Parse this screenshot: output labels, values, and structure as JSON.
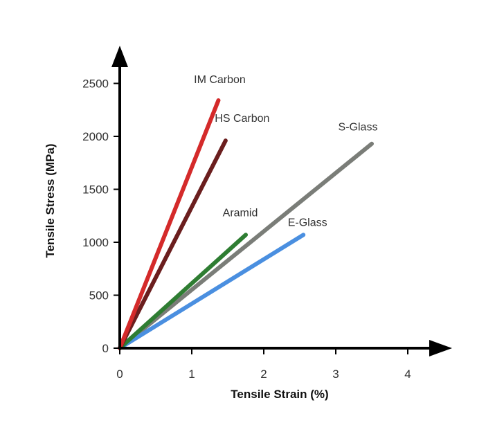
{
  "chart_data": {
    "type": "line",
    "title": "",
    "xlabel": "Tensile Strain (%)",
    "ylabel": "Tensile Stress (MPa)",
    "xlim": [
      0,
      4
    ],
    "ylim": [
      0,
      2500
    ],
    "xticks": [
      "0",
      "1",
      "2",
      "3",
      "4"
    ],
    "yticks": [
      "0",
      "500",
      "1000",
      "1500",
      "2000",
      "2500"
    ],
    "grid": false,
    "legend": "none (labels placed next to each line)",
    "series": [
      {
        "name": "IM Carbon",
        "color": "#d42a2a",
        "x": [
          0,
          1.37
        ],
        "y": [
          0,
          2340
        ]
      },
      {
        "name": "HS Carbon",
        "color": "#6b1e1e",
        "x": [
          0,
          1.47
        ],
        "y": [
          0,
          1960
        ]
      },
      {
        "name": "Aramid",
        "color": "#2e7d32",
        "x": [
          0,
          1.75
        ],
        "y": [
          0,
          1070
        ]
      },
      {
        "name": "S-Glass",
        "color": "#7a7d78",
        "x": [
          0,
          3.5
        ],
        "y": [
          0,
          1930
        ]
      },
      {
        "name": "E-Glass",
        "color": "#4a8fe0",
        "x": [
          0,
          2.55
        ],
        "y": [
          0,
          1070
        ]
      }
    ]
  }
}
